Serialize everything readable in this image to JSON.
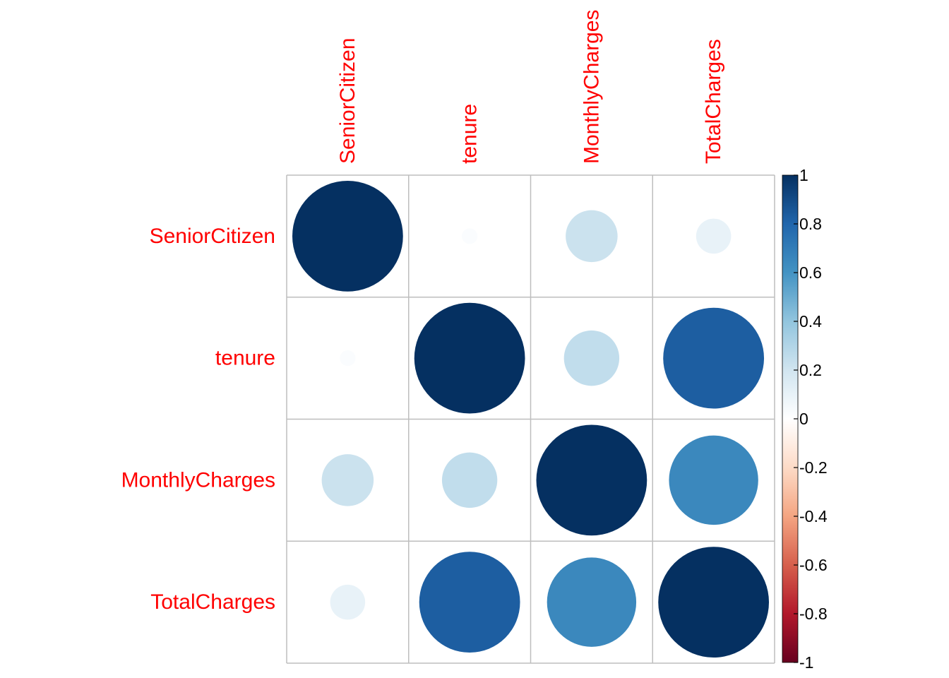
{
  "chart_data": {
    "type": "heatmap",
    "variables": [
      "SeniorCitizen",
      "tenure",
      "MonthlyCharges",
      "TotalCharges"
    ],
    "matrix": [
      [
        1.0,
        0.02,
        0.22,
        0.1
      ],
      [
        0.02,
        1.0,
        0.25,
        0.83
      ],
      [
        0.22,
        0.25,
        1.0,
        0.65
      ],
      [
        0.1,
        0.83,
        0.65,
        1.0
      ]
    ],
    "colorbar": {
      "range": [
        -1,
        1
      ],
      "ticks": [
        "1",
        "0.8",
        "0.6",
        "0.4",
        "0.2",
        "0",
        "-0.2",
        "-0.4",
        "-0.6",
        "-0.8",
        "-1"
      ],
      "stops": [
        "#67001F",
        "#B2182B",
        "#D6604D",
        "#F4A582",
        "#FDDBC7",
        "#FFFFFF",
        "#D1E5F0",
        "#92C5DE",
        "#4393C3",
        "#2166AC",
        "#053061"
      ]
    },
    "label_color": "#ff0000",
    "grid_color": "#bebebe"
  }
}
